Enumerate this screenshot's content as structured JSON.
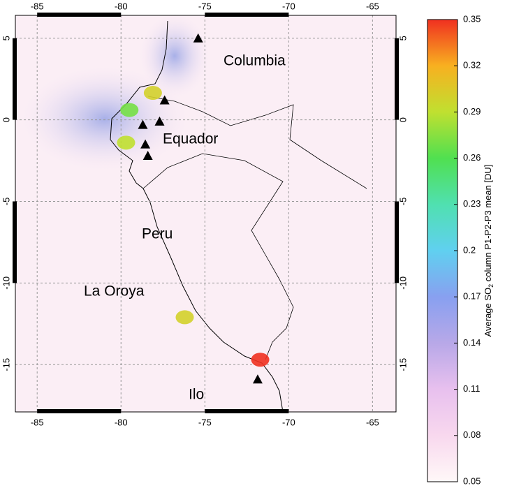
{
  "chart_data": {
    "type": "map",
    "xlim": [
      -86.3,
      -63.6
    ],
    "ylim": [
      -17.9,
      6.4
    ],
    "xticks": [
      -85,
      -80,
      -75,
      -70,
      -65
    ],
    "yticks": [
      5,
      0,
      -5,
      -10,
      -15
    ],
    "grid": true,
    "place_labels": [
      "Columbia",
      "Equador",
      "Peru",
      "La Oroya",
      "Ilo"
    ],
    "volcanoes": {
      "lon": [
        -75.4,
        -77.4,
        -78.7,
        -77.7,
        -78.55,
        -78.4,
        -71.85
      ],
      "lat": [
        5.0,
        1.2,
        -0.3,
        -0.1,
        -1.5,
        -2.2,
        -15.9
      ]
    },
    "hotspots": {
      "lon": [
        -78.1,
        -79.5,
        -79.7,
        -76.2,
        -71.7
      ],
      "lat": [
        1.65,
        0.6,
        -1.4,
        -12.1,
        -14.7
      ],
      "values": [
        0.3,
        0.27,
        0.29,
        0.3,
        0.35
      ]
    },
    "colorbar": {
      "lim": [
        0.05,
        0.35
      ],
      "ticks": [
        0.05,
        0.08,
        0.11,
        0.14,
        0.17,
        0.2,
        0.23,
        0.26,
        0.29,
        0.32,
        0.35
      ],
      "colors": [
        "#fff8f8",
        "#f8d8ee",
        "#e8c0ee",
        "#b8a8e8",
        "#88a0f0",
        "#60d0f0",
        "#50e0b0",
        "#50e050",
        "#c0e030",
        "#f8b020",
        "#f03020"
      ],
      "label_prefix": "Average SO",
      "label_sub": "2",
      "label_suffix": " column P1-P2-P3 mean [DU]"
    }
  }
}
